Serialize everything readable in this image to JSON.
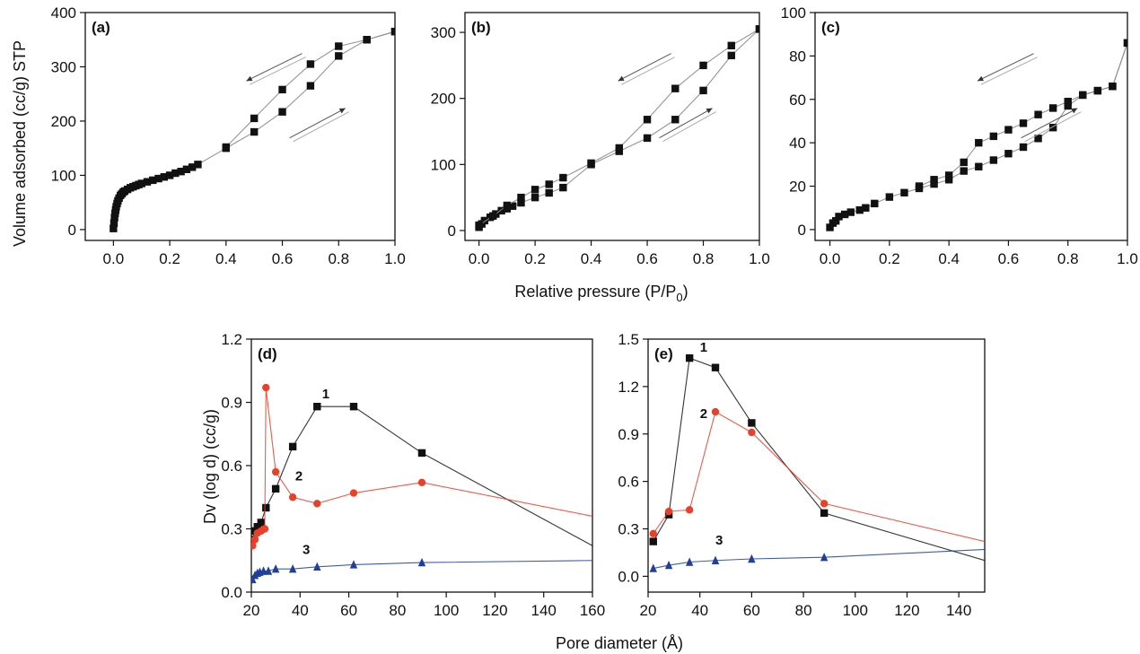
{
  "figure": {
    "shared_xlabel_top": "Relative pressure (P/P",
    "shared_xlabel_top_sub": "0",
    "shared_xlabel_top_close": ")",
    "shared_xlabel_bottom": "Pore diameter (Å)",
    "ylabel_top": "Volume adsorbed (cc/g) STP",
    "ylabel_bottom": "Dv (log d) (cc/g)"
  },
  "colors": {
    "black": "#111111",
    "red": "#e8402a",
    "blue": "#1f3f9a",
    "line_gray": "#8a8a8a"
  },
  "chart_data": [
    {
      "panel": "(a)",
      "type": "scatter",
      "xlim": [
        -0.1,
        1.0
      ],
      "ylim": [
        -20,
        400
      ],
      "xticks": [
        0.0,
        0.2,
        0.4,
        0.6,
        0.8,
        1.0
      ],
      "xtick_labels": [
        "0.0",
        "0.2",
        "0.4",
        "0.6",
        "0.8",
        "1.0"
      ],
      "yticks": [
        0,
        100,
        200,
        300,
        400
      ],
      "ytick_labels": [
        "0",
        "100",
        "200",
        "300",
        "400"
      ],
      "xlabel": "",
      "ylabel": "Volume adsorbed (cc/g) STP",
      "series": [
        {
          "role": "adsorption",
          "marker": "square",
          "x": [
            0.0,
            0.002,
            0.004,
            0.006,
            0.008,
            0.01,
            0.013,
            0.016,
            0.02,
            0.025,
            0.03,
            0.035,
            0.04,
            0.05,
            0.06,
            0.07,
            0.08,
            0.09,
            0.1,
            0.12,
            0.14,
            0.16,
            0.18,
            0.2,
            0.22,
            0.24,
            0.26,
            0.28,
            0.3,
            0.4,
            0.5,
            0.6,
            0.7,
            0.8,
            0.9,
            1.0
          ],
          "y": [
            2,
            12,
            22,
            30,
            36,
            42,
            48,
            53,
            58,
            63,
            66,
            69,
            71,
            74,
            77,
            79,
            81,
            83,
            85,
            88,
            91,
            94,
            97,
            100,
            104,
            107,
            111,
            115,
            120,
            150,
            180,
            217,
            265,
            320,
            350,
            365
          ]
        },
        {
          "role": "desorption",
          "marker": "square",
          "x": [
            0.4,
            0.5,
            0.6,
            0.7,
            0.8,
            0.9,
            1.0
          ],
          "y": [
            152,
            205,
            258,
            305,
            338,
            350,
            365
          ]
        }
      ],
      "annotations": [
        "desorption arrow",
        "adsorption arrow"
      ]
    },
    {
      "panel": "(b)",
      "type": "scatter",
      "xlim": [
        -0.05,
        1.0
      ],
      "ylim": [
        -15,
        330
      ],
      "xticks": [
        0.0,
        0.2,
        0.4,
        0.6,
        0.8,
        1.0
      ],
      "xtick_labels": [
        "0.0",
        "0.2",
        "0.4",
        "0.6",
        "0.8",
        "1.0"
      ],
      "yticks": [
        0,
        100,
        200,
        300
      ],
      "ytick_labels": [
        "0",
        "100",
        "200",
        "300"
      ],
      "xlabel": "Relative pressure (P/P0)",
      "ylabel": "",
      "series": [
        {
          "role": "adsorption",
          "marker": "square",
          "x": [
            0.0,
            0.01,
            0.02,
            0.04,
            0.06,
            0.08,
            0.1,
            0.12,
            0.15,
            0.2,
            0.25,
            0.3,
            0.4,
            0.5,
            0.6,
            0.7,
            0.8,
            0.9,
            1.0
          ],
          "y": [
            5,
            10,
            15,
            20,
            25,
            30,
            33,
            37,
            42,
            50,
            57,
            65,
            100,
            120,
            140,
            168,
            212,
            265,
            305
          ]
        },
        {
          "role": "desorption",
          "marker": "square",
          "x": [
            0.0,
            0.05,
            0.1,
            0.15,
            0.2,
            0.25,
            0.3,
            0.4,
            0.5,
            0.6,
            0.7,
            0.8,
            0.9,
            1.0
          ],
          "y": [
            8,
            22,
            38,
            50,
            62,
            70,
            80,
            102,
            125,
            168,
            215,
            250,
            280,
            305
          ]
        }
      ],
      "annotations": [
        "desorption arrow",
        "adsorption arrow"
      ]
    },
    {
      "panel": "(c)",
      "type": "scatter",
      "xlim": [
        -0.05,
        1.0
      ],
      "ylim": [
        -5,
        100
      ],
      "xticks": [
        0.0,
        0.2,
        0.4,
        0.6,
        0.8,
        1.0
      ],
      "xtick_labels": [
        "0.0",
        "0.2",
        "0.4",
        "0.6",
        "0.8",
        "1.0"
      ],
      "yticks": [
        0,
        20,
        40,
        60,
        80,
        100
      ],
      "ytick_labels": [
        "0",
        "20",
        "40",
        "60",
        "80",
        "100"
      ],
      "xlabel": "",
      "ylabel": "",
      "series": [
        {
          "role": "adsorption",
          "marker": "square",
          "x": [
            0.0,
            0.01,
            0.02,
            0.03,
            0.05,
            0.07,
            0.1,
            0.12,
            0.15,
            0.2,
            0.25,
            0.3,
            0.35,
            0.4,
            0.45,
            0.5,
            0.55,
            0.6,
            0.65,
            0.7,
            0.75,
            0.8,
            0.85,
            0.9,
            0.95,
            1.0
          ],
          "y": [
            1,
            3,
            4,
            6,
            7,
            8,
            9,
            10,
            12,
            15,
            17,
            19,
            21,
            23,
            27,
            29,
            32,
            35,
            38,
            42,
            47,
            57,
            62,
            64,
            66,
            86
          ]
        },
        {
          "role": "desorption",
          "marker": "square",
          "x": [
            0.3,
            0.35,
            0.4,
            0.45,
            0.5,
            0.55,
            0.6,
            0.65,
            0.7,
            0.75,
            0.8,
            0.85,
            0.9,
            0.95,
            1.0
          ],
          "y": [
            20,
            23,
            25,
            31,
            40,
            43,
            46,
            49,
            53,
            56,
            59,
            62,
            64,
            66,
            86
          ]
        }
      ],
      "annotations": [
        "desorption arrow",
        "adsorption arrow"
      ]
    },
    {
      "panel": "(d)",
      "type": "line",
      "xlim": [
        20,
        160
      ],
      "ylim": [
        0.0,
        1.2
      ],
      "xticks": [
        20,
        40,
        60,
        80,
        100,
        120,
        140,
        160
      ],
      "xtick_labels": [
        "20",
        "40",
        "60",
        "80",
        "100",
        "120",
        "140",
        "160"
      ],
      "yticks": [
        0.0,
        0.3,
        0.6,
        0.9,
        1.2
      ],
      "ytick_labels": [
        "0.0",
        "0.3",
        "0.6",
        "0.9",
        "1.2"
      ],
      "xlabel": "Pore diameter (Å)",
      "ylabel": "Dv (log d) (cc/g)",
      "series": [
        {
          "name": "1",
          "marker": "square",
          "color": "#111111",
          "x": [
            20.5,
            21.5,
            22.5,
            24,
            26,
            30,
            37,
            47,
            62,
            90,
            160
          ],
          "y": [
            0.25,
            0.29,
            0.31,
            0.33,
            0.4,
            0.49,
            0.69,
            0.88,
            0.88,
            0.66,
            0.22
          ]
        },
        {
          "name": "2",
          "marker": "circle",
          "color": "#e8402a",
          "x": [
            20.5,
            21.5,
            22.5,
            24,
            25.5,
            26,
            30,
            37,
            47,
            62,
            90,
            160
          ],
          "y": [
            0.22,
            0.25,
            0.28,
            0.29,
            0.3,
            0.97,
            0.57,
            0.45,
            0.42,
            0.47,
            0.52,
            0.36
          ]
        },
        {
          "name": "3",
          "marker": "triangle",
          "color": "#1f3f9a",
          "x": [
            20.5,
            21.5,
            22.5,
            23.5,
            25,
            27,
            30,
            37,
            47,
            62,
            90,
            160
          ],
          "y": [
            0.06,
            0.08,
            0.09,
            0.095,
            0.1,
            0.1,
            0.11,
            0.11,
            0.12,
            0.13,
            0.14,
            0.15
          ]
        }
      ]
    },
    {
      "panel": "(e)",
      "type": "line",
      "xlim": [
        20,
        150
      ],
      "ylim": [
        -0.1,
        1.5
      ],
      "xticks": [
        20,
        40,
        60,
        80,
        100,
        120,
        140
      ],
      "xtick_labels": [
        "20",
        "40",
        "60",
        "80",
        "100",
        "120",
        "140"
      ],
      "yticks": [
        0.0,
        0.3,
        0.6,
        0.9,
        1.2,
        1.5
      ],
      "ytick_labels": [
        "0.0",
        "0.3",
        "0.6",
        "0.9",
        "1.2",
        "1.5"
      ],
      "xlabel": "Pore diameter (Å)",
      "ylabel": "",
      "series": [
        {
          "name": "1",
          "marker": "square",
          "color": "#111111",
          "x": [
            22,
            28,
            36,
            46,
            60,
            88,
            150
          ],
          "y": [
            0.22,
            0.39,
            1.38,
            1.32,
            0.97,
            0.4,
            0.1
          ]
        },
        {
          "name": "2",
          "marker": "circle",
          "color": "#e8402a",
          "x": [
            22,
            28,
            36,
            46,
            60,
            88,
            150
          ],
          "y": [
            0.27,
            0.41,
            0.42,
            1.04,
            0.91,
            0.46,
            0.22
          ]
        },
        {
          "name": "3",
          "marker": "triangle",
          "color": "#1f3f9a",
          "x": [
            22,
            28,
            36,
            46,
            60,
            88,
            150
          ],
          "y": [
            0.05,
            0.07,
            0.09,
            0.1,
            0.11,
            0.12,
            0.17
          ]
        }
      ]
    }
  ]
}
